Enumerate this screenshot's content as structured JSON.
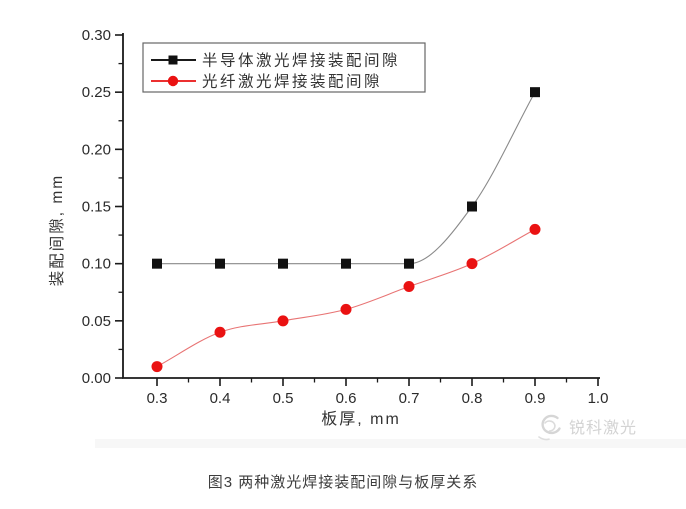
{
  "chart_data": {
    "type": "line",
    "x": [
      0.3,
      0.4,
      0.5,
      0.6,
      0.7,
      0.8,
      0.9
    ],
    "series": [
      {
        "name": "半导体激光焊接装配间隙",
        "values": [
          0.1,
          0.1,
          0.1,
          0.1,
          0.1,
          0.15,
          0.25
        ],
        "marker": "square",
        "marker_color": "#111111",
        "line_color": "#8a8a8a",
        "legend_line_color": "#1a1a1a"
      },
      {
        "name": "光纤激光焊接装配间隙",
        "values": [
          0.01,
          0.04,
          0.05,
          0.06,
          0.08,
          0.1,
          0.13
        ],
        "marker": "circle",
        "marker_color": "#ea1212",
        "line_color": "#e87474",
        "legend_line_color": "#ea1212"
      }
    ],
    "xlabel": "板厚, mm",
    "ylabel": "装配间隙, mm",
    "xlim": [
      0.25,
      1.0
    ],
    "ylim": [
      0.0,
      0.3
    ],
    "xticks": [
      "0.3",
      "0.4",
      "0.5",
      "0.6",
      "0.7",
      "0.8",
      "0.9",
      "1.0"
    ],
    "yticks": [
      "0.00",
      "0.05",
      "0.10",
      "0.15",
      "0.20",
      "0.25",
      "0.30"
    ],
    "minor_x_step": 0.05,
    "minor_y_step": 0.025,
    "grid": false,
    "legend_position": "top-left",
    "axis_color": "#1a1a1a",
    "tick_label_color": "#2b2b2b"
  },
  "caption": "图3  两种激光焊接装配间隙与板厚关系",
  "watermark": {
    "icon": "swirl-logo",
    "text": "锐科激光",
    "color": "#d3d3d3"
  }
}
